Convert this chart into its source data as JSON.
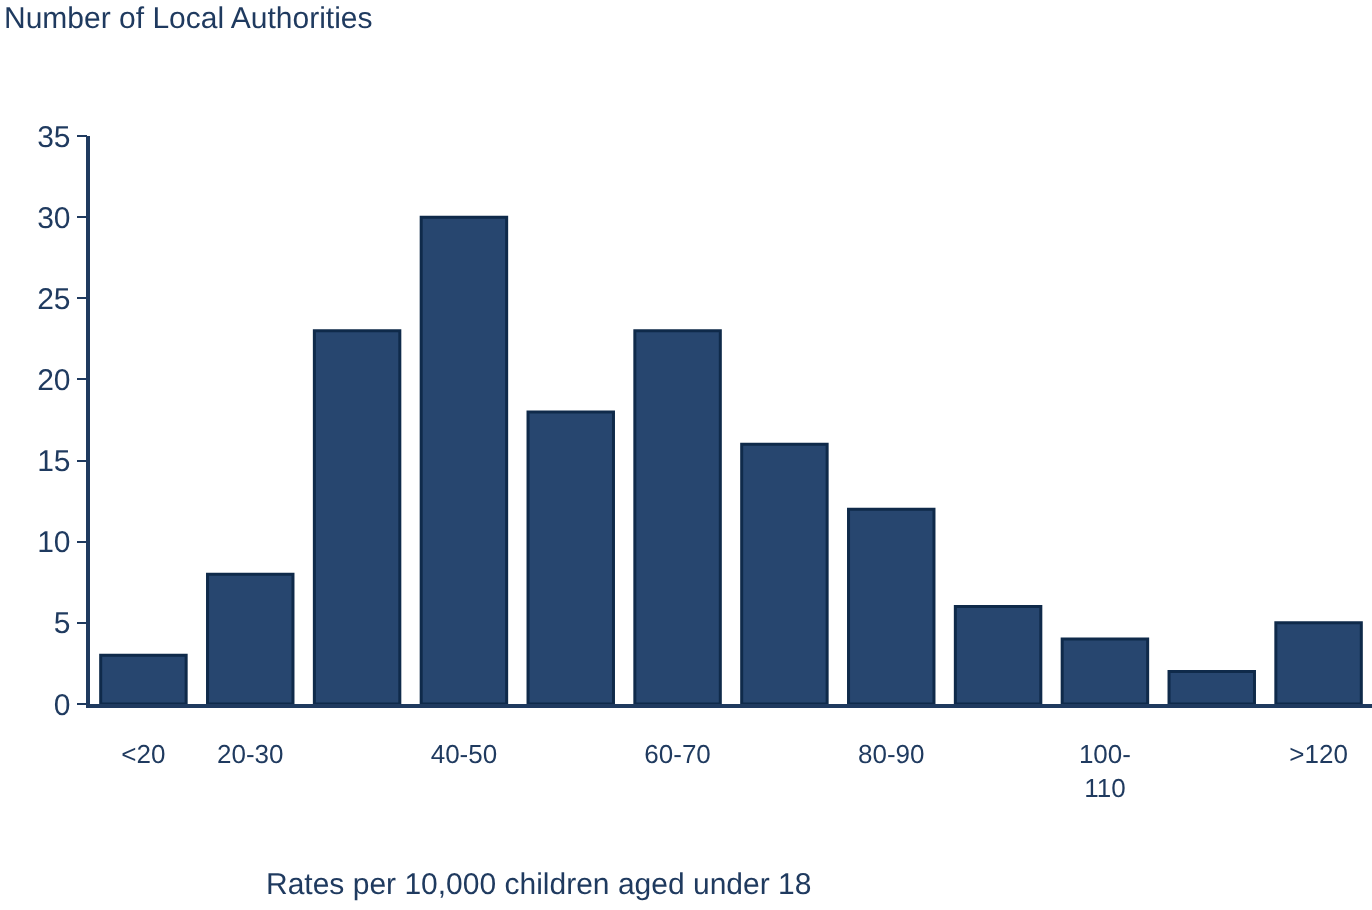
{
  "chart_data": {
    "type": "bar",
    "ylabel": "Number of Local Authorities",
    "xlabel": "Rates per 10,000 children aged under 18",
    "categories": [
      "<20",
      "20-30",
      null,
      "40-50",
      null,
      "60-70",
      null,
      "80-90",
      null,
      "100-110",
      null,
      ">120"
    ],
    "values": [
      3,
      8,
      23,
      30,
      18,
      23,
      16,
      12,
      6,
      4,
      2,
      5
    ],
    "color": "#27466f",
    "ylim": [
      0,
      35
    ],
    "yticks": [
      0,
      5,
      10,
      15,
      20,
      25,
      30,
      35
    ]
  }
}
